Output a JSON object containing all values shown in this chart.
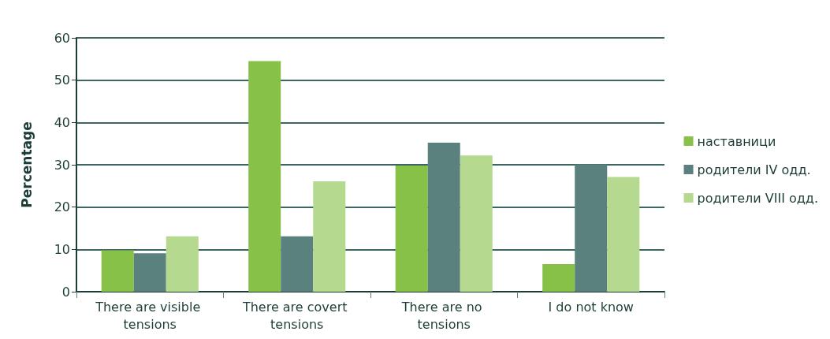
{
  "chart_data": {
    "type": "bar",
    "ylabel": "Percentage",
    "categories": [
      "There are visible tensions",
      "There are covert tensions",
      "There are no tensions",
      "I do not know"
    ],
    "series": [
      {
        "name": "наставници",
        "color": "#88c147",
        "values": [
          9.8,
          54.5,
          29.8,
          6.5
        ]
      },
      {
        "name": "родители IV одд.",
        "color": "#5a817e",
        "values": [
          9.1,
          13.1,
          35.2,
          30.1
        ]
      },
      {
        "name": "родители VIII одд.",
        "color": "#b5d98f",
        "values": [
          13.1,
          26.1,
          32.2,
          27.1
        ]
      }
    ],
    "ylim": [
      0,
      60
    ],
    "yticks": [
      0,
      10,
      20,
      30,
      40,
      50,
      60
    ],
    "grid": "y",
    "legend": "right"
  }
}
